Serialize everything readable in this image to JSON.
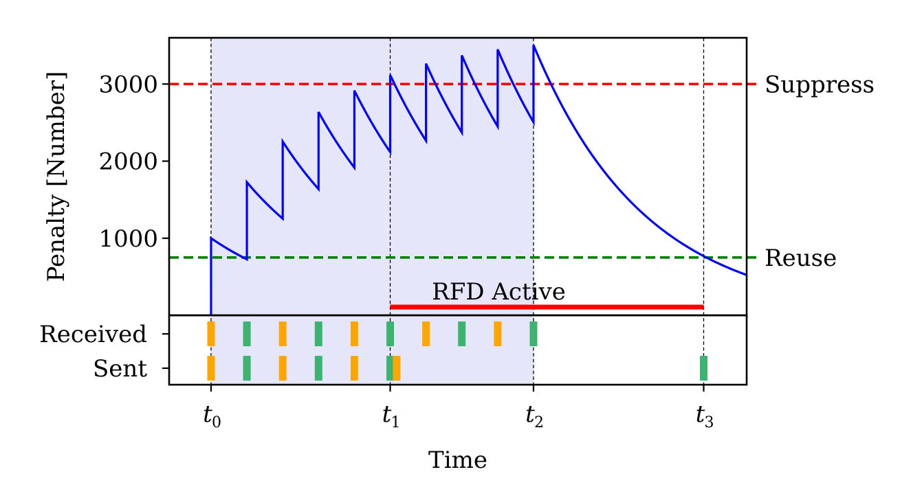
{
  "chart_data": {
    "type": "line",
    "xlabel": "Time",
    "ylabel": "Penalty [Number]",
    "x_ticks": [
      {
        "x": 0,
        "base": "t",
        "sub": "0"
      },
      {
        "x": 5,
        "base": "t",
        "sub": "1"
      },
      {
        "x": 9,
        "base": "t",
        "sub": "2"
      },
      {
        "x": 13.75,
        "base": "t",
        "sub": "3"
      }
    ],
    "xlim": [
      -1.17,
      14.95
    ],
    "ylim": [
      0,
      3600
    ],
    "y_ticks": [
      1000,
      2000,
      3000
    ],
    "thresholds": [
      {
        "name": "Suppress",
        "value": 3000,
        "color": "#ff0000"
      },
      {
        "name": "Reuse",
        "value": 750,
        "color": "#008000"
      }
    ],
    "penalty_series": {
      "color": "#0000ff",
      "flap_times": [
        0,
        1,
        2,
        3,
        4,
        5,
        6,
        7,
        8,
        9
      ],
      "flap_increment": 1000,
      "decay_per_unit_time": 0.7264,
      "points": [
        {
          "x": 0,
          "y": 0
        },
        {
          "x": 0,
          "y": 1000
        },
        {
          "x": 1,
          "y": 726
        },
        {
          "x": 1,
          "y": 1726
        },
        {
          "x": 2,
          "y": 1254
        },
        {
          "x": 2,
          "y": 2254
        },
        {
          "x": 3,
          "y": 1637
        },
        {
          "x": 3,
          "y": 2637
        },
        {
          "x": 4,
          "y": 1916
        },
        {
          "x": 4,
          "y": 2916
        },
        {
          "x": 5,
          "y": 2118
        },
        {
          "x": 5,
          "y": 3118
        },
        {
          "x": 6,
          "y": 2265
        },
        {
          "x": 6,
          "y": 3265
        },
        {
          "x": 7,
          "y": 2372
        },
        {
          "x": 7,
          "y": 3372
        },
        {
          "x": 8,
          "y": 2450
        },
        {
          "x": 8,
          "y": 3450
        },
        {
          "x": 9,
          "y": 2506
        },
        {
          "x": 9,
          "y": 3506
        },
        {
          "x": 13.75,
          "y": 750
        },
        {
          "x": 14.95,
          "y": 512
        }
      ]
    },
    "shaded_region": {
      "x_start": 0,
      "x_end": 9,
      "color": "#e6e6fa"
    },
    "rfd_active": {
      "label": "RFD Active",
      "x_start": 5,
      "x_end": 13.75,
      "color": "#ff0000"
    },
    "event_rows": [
      "Received",
      "Sent"
    ],
    "events": {
      "received": [
        {
          "x": 0,
          "color": "#ffa500"
        },
        {
          "x": 1,
          "color": "#3cb371"
        },
        {
          "x": 2,
          "color": "#ffa500"
        },
        {
          "x": 3,
          "color": "#3cb371"
        },
        {
          "x": 4,
          "color": "#ffa500"
        },
        {
          "x": 5,
          "color": "#3cb371"
        },
        {
          "x": 6,
          "color": "#ffa500"
        },
        {
          "x": 7,
          "color": "#3cb371"
        },
        {
          "x": 8,
          "color": "#ffa500"
        },
        {
          "x": 9,
          "color": "#3cb371"
        }
      ],
      "sent": [
        {
          "x": 0,
          "color": "#ffa500"
        },
        {
          "x": 1,
          "color": "#3cb371"
        },
        {
          "x": 2,
          "color": "#ffa500"
        },
        {
          "x": 3,
          "color": "#3cb371"
        },
        {
          "x": 4,
          "color": "#ffa500"
        },
        {
          "x": 5,
          "color": "#3cb371"
        },
        {
          "x": 5.18,
          "color": "#ffa500"
        },
        {
          "x": 13.75,
          "color": "#3cb371"
        }
      ]
    }
  }
}
